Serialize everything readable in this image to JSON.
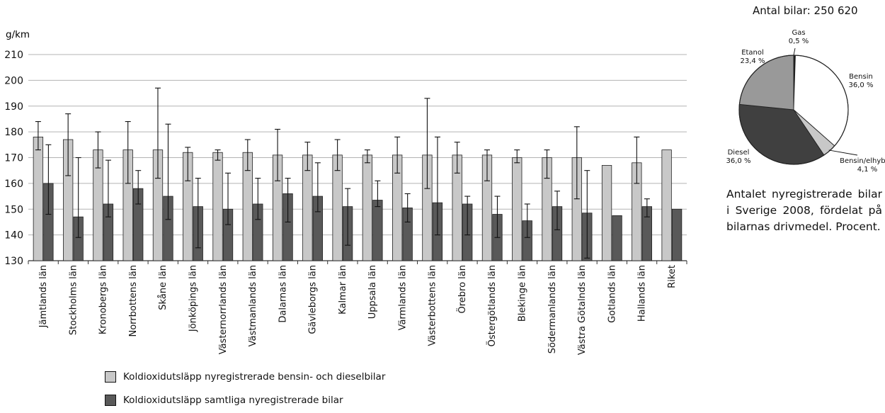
{
  "chart_data": [
    {
      "type": "bar",
      "unit_label": "g/km",
      "ylim": [
        130,
        210
      ],
      "yticks": [
        130,
        140,
        150,
        160,
        170,
        180,
        190,
        200,
        210
      ],
      "grid": true,
      "categories": [
        "Jämtlands län",
        "Stockholms län",
        "Kronobergs län",
        "Norrbottens län",
        "Skåne län",
        "Jönköpings län",
        "Västernorrlands län",
        "Västmanlands län",
        "Dalarnas län",
        "Gävleborgs län",
        "Kalmar län",
        "Uppsala län",
        "Värmlands län",
        "Västerbottens län",
        "Örebro län",
        "Östergötlands län",
        "Blekinge län",
        "Södermanlands län",
        "Västra Götalnds län",
        "Gotlands län",
        "Hallands län",
        "Riket"
      ],
      "series": [
        {
          "name": "Koldioxidutsläpp nyregistrerade bensin- och dieselbilar",
          "color": "#c8c8c8",
          "values": [
            178,
            177,
            173,
            173,
            173,
            172,
            172,
            172,
            171,
            171,
            171,
            171,
            171,
            171,
            171,
            171,
            170,
            170,
            170,
            167,
            168,
            173
          ],
          "err_low": [
            173,
            163,
            166,
            160,
            162,
            161,
            169,
            165,
            161,
            165,
            165,
            168,
            164,
            158,
            164,
            161,
            168,
            162,
            154,
            null,
            160,
            null
          ],
          "err_high": [
            184,
            187,
            180,
            184,
            197,
            174,
            173,
            177,
            181,
            176,
            177,
            173,
            178,
            193,
            176,
            173,
            173,
            173,
            182,
            null,
            178,
            null
          ]
        },
        {
          "name": "Koldioxidutsläpp samtliga nyregistrerade bilar",
          "color": "#595959",
          "values": [
            160,
            147,
            152,
            158,
            155,
            151,
            150,
            152,
            156,
            155,
            151,
            153.5,
            150.5,
            152.5,
            152,
            148,
            145.5,
            151,
            148.5,
            147.5,
            151,
            150
          ],
          "err_low": [
            148,
            139,
            147,
            152,
            146,
            135,
            144,
            146,
            145,
            149,
            136,
            151,
            145,
            140,
            140,
            139,
            139,
            142,
            131,
            null,
            147,
            null
          ],
          "err_high": [
            175,
            170,
            169,
            165,
            183,
            162,
            164,
            162,
            162,
            168,
            158,
            161,
            156,
            178,
            155,
            155,
            152,
            157,
            165,
            null,
            154,
            null
          ]
        }
      ]
    },
    {
      "type": "pie",
      "title": "Antal bilar: 250 620",
      "caption": "Antalet nyregistrerade bilar i Sverige 2008, fördelat på bilarnas drivmedel. Procent.",
      "slices": [
        {
          "label": "Gas",
          "value_text": "0,5 %",
          "value": 0.5,
          "color": "#1a1a1a"
        },
        {
          "label": "Bensin",
          "value_text": "36,0 %",
          "value": 36.0,
          "color": "#ffffff"
        },
        {
          "label": "Bensin/elhybrid",
          "value_text": "4,1 %",
          "value": 4.1,
          "color": "#c8c8c8"
        },
        {
          "label": "Diesel",
          "value_text": "36,0 %",
          "value": 36.0,
          "color": "#404040"
        },
        {
          "label": "Etanol",
          "value_text": "23,4 %",
          "value": 23.4,
          "color": "#999999"
        }
      ]
    }
  ]
}
